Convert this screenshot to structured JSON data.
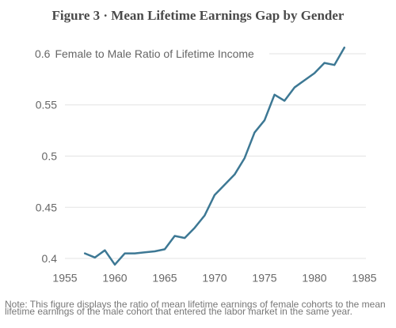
{
  "figure": {
    "title": "Figure 3 · Mean Lifetime Earnings Gap by Gender",
    "note": "Note: This figure displays the ratio of mean lifetime earnings of female cohorts to the mean lifetime earnings of the male cohort that entered the labor market in the same year."
  },
  "chart_data": {
    "type": "line",
    "title": "Figure 3 · Mean Lifetime Earnings Gap by Gender",
    "xlabel": "",
    "ylabel": "Female to Male Ratio of Lifetime Income",
    "xlim": [
      1955,
      1985
    ],
    "ylim": [
      0.39,
      0.61
    ],
    "x_ticks": [
      1955,
      1960,
      1965,
      1970,
      1975,
      1980,
      1985
    ],
    "y_ticks": [
      0.4,
      0.45,
      0.5,
      0.55,
      0.6
    ],
    "y_tick_labels": [
      "0.4",
      "0.45",
      "0.5",
      "0.55",
      "0.6"
    ],
    "grid": "horizontal",
    "colors": {
      "line": "#3d7894",
      "grid": "#e3e3e3",
      "text": "#666666"
    },
    "series": [
      {
        "x": [
          1957,
          1958,
          1959,
          1960,
          1961,
          1962,
          1963,
          1964,
          1965,
          1966,
          1967,
          1968,
          1969,
          1970,
          1971,
          1972,
          1973,
          1974,
          1975,
          1976,
          1977,
          1978,
          1979,
          1980,
          1981,
          1982,
          1983
        ],
        "values": [
          0.405,
          0.401,
          0.408,
          0.394,
          0.405,
          0.405,
          0.406,
          0.407,
          0.409,
          0.422,
          0.42,
          0.43,
          0.442,
          0.462,
          0.472,
          0.482,
          0.498,
          0.523,
          0.535,
          0.56,
          0.554,
          0.567,
          0.574,
          0.581,
          0.591,
          0.589,
          0.606
        ]
      }
    ]
  }
}
